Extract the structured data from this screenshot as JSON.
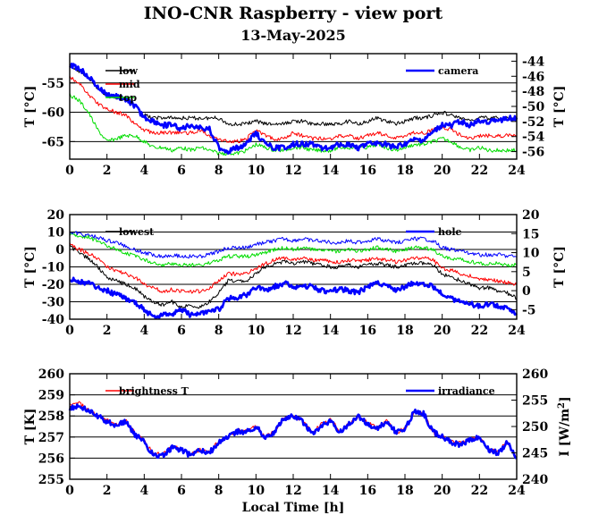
{
  "title": "INO-CNR Raspberry - view port",
  "subtitle": "13-May-2025",
  "xlabel": "Local Time [h]",
  "colors": {
    "low": "#000000",
    "mid": "#ff0000",
    "top": "#00dd00",
    "blue": "#0000ff"
  },
  "chart_data": [
    {
      "type": "line",
      "ylabel": "T [°C]",
      "y2label": "T [°C]",
      "xlim": [
        0,
        24
      ],
      "ylim": [
        -68,
        -50
      ],
      "y2lim": [
        -57,
        -43
      ],
      "xticks": [
        "0",
        "2",
        "4",
        "6",
        "8",
        "10",
        "12",
        "14",
        "16",
        "18",
        "20",
        "22",
        "24"
      ],
      "yticks": [
        "-55",
        "-60",
        "-65"
      ],
      "y2ticks": [
        "-44",
        "-46",
        "-48",
        "-50",
        "-52",
        "-54",
        "-56"
      ],
      "x": [
        0,
        0.5,
        1,
        1.5,
        2,
        2.5,
        3,
        3.5,
        4,
        4.5,
        5,
        5.5,
        6,
        6.5,
        7,
        7.5,
        8,
        8.5,
        9,
        9.5,
        10,
        10.5,
        11,
        11.5,
        12,
        12.5,
        13,
        13.5,
        14,
        14.5,
        15,
        15.5,
        16,
        16.5,
        17,
        17.5,
        18,
        18.5,
        19,
        19.5,
        20,
        20.5,
        21,
        21.5,
        22,
        22.5,
        23,
        23.5,
        24
      ],
      "series": [
        {
          "name": "low",
          "axis": "left",
          "color": "#000000",
          "values": [
            -52,
            -53,
            -54,
            -56,
            -57,
            -57.5,
            -58,
            -59,
            -60.5,
            -61,
            -61,
            -61,
            -61,
            -61,
            -61,
            -61,
            -61,
            -62,
            -62,
            -62,
            -61.5,
            -62,
            -62,
            -62,
            -61.5,
            -61.5,
            -62,
            -62,
            -62,
            -62,
            -61.5,
            -62,
            -61.5,
            -61,
            -61.5,
            -62,
            -61.5,
            -61,
            -61,
            -60.5,
            -60,
            -60.5,
            -61,
            -61.5,
            -61,
            -61,
            -61,
            -61,
            -61
          ]
        },
        {
          "name": "mid",
          "axis": "left",
          "color": "#ff0000",
          "values": [
            -54,
            -55,
            -57,
            -58.5,
            -59.5,
            -60,
            -60.5,
            -62,
            -63,
            -63.5,
            -63.5,
            -63.5,
            -63.5,
            -63.5,
            -63,
            -64,
            -64.5,
            -65,
            -65,
            -64.5,
            -63,
            -64,
            -64.5,
            -64.5,
            -63.5,
            -64,
            -64.5,
            -64.5,
            -64.5,
            -64,
            -64,
            -64.5,
            -64,
            -63.5,
            -64,
            -64.5,
            -64,
            -63.5,
            -63.5,
            -63,
            -62.5,
            -63,
            -64,
            -64.5,
            -64,
            -64,
            -64,
            -64,
            -64
          ]
        },
        {
          "name": "top",
          "axis": "left",
          "color": "#00dd00",
          "values": [
            -57,
            -58,
            -60,
            -63,
            -65,
            -64.5,
            -64,
            -64,
            -65,
            -66,
            -66,
            -66.5,
            -66,
            -66.5,
            -66,
            -66.5,
            -67,
            -67,
            -67,
            -66.5,
            -65.5,
            -66,
            -66.5,
            -66.5,
            -66,
            -66,
            -66.5,
            -66.5,
            -66.5,
            -66,
            -66,
            -66,
            -66,
            -65.5,
            -66,
            -66.5,
            -66,
            -65.5,
            -65.5,
            -65,
            -64.5,
            -65,
            -66,
            -66.5,
            -66,
            -66.5,
            -66.5,
            -66.5,
            -66.5
          ]
        },
        {
          "name": "camera",
          "axis": "right",
          "color": "#0000ff",
          "values": [
            -44.5,
            -45,
            -46,
            -47.5,
            -48.5,
            -48.7,
            -49,
            -50,
            -51.5,
            -52,
            -52.5,
            -52.5,
            -53,
            -52.5,
            -52.8,
            -53,
            -55.5,
            -56,
            -55.5,
            -55,
            -53.5,
            -55,
            -55.5,
            -55.5,
            -55,
            -55,
            -55,
            -55.5,
            -55.5,
            -55,
            -55,
            -55.5,
            -55,
            -55,
            -55,
            -55.5,
            -55,
            -54.5,
            -54.5,
            -53.5,
            -52.5,
            -52.5,
            -52,
            -52.5,
            -52,
            -52,
            -52,
            -51.5,
            -51.5
          ]
        }
      ],
      "legend_left": [
        "low",
        "mid",
        "top"
      ],
      "legend_right": [
        "camera"
      ]
    },
    {
      "type": "line",
      "ylabel": "T [°C]",
      "y2label": "T [°C]",
      "xlim": [
        0,
        24
      ],
      "ylim": [
        -40,
        20
      ],
      "y2lim": [
        -7.5,
        20
      ],
      "xticks": [
        "0",
        "2",
        "4",
        "6",
        "8",
        "10",
        "12",
        "14",
        "16",
        "18",
        "20",
        "22",
        "24"
      ],
      "yticks": [
        "20",
        "10",
        "0",
        "-10",
        "-20",
        "-30",
        "-40"
      ],
      "y2ticks": [
        "20",
        "15",
        "10",
        "5",
        "0",
        "-5"
      ],
      "x": [
        0,
        0.5,
        1,
        1.5,
        2,
        2.5,
        3,
        3.5,
        4,
        4.5,
        5,
        5.5,
        6,
        6.5,
        7,
        7.5,
        8,
        8.5,
        9,
        9.5,
        10,
        10.5,
        11,
        11.5,
        12,
        12.5,
        13,
        13.5,
        14,
        14.5,
        15,
        15.5,
        16,
        16.5,
        17,
        17.5,
        18,
        18.5,
        19,
        19.5,
        20,
        20.5,
        21,
        21.5,
        22,
        22.5,
        23,
        23.5,
        24
      ],
      "series": [
        {
          "name": "lowest",
          "axis": "left",
          "color": "#000000",
          "values": [
            2,
            -2,
            -5,
            -10,
            -16,
            -18,
            -20,
            -22,
            -27,
            -30,
            -32,
            -30,
            -33,
            -32,
            -33,
            -30,
            -25,
            -18,
            -18,
            -18,
            -14,
            -10,
            -8,
            -7,
            -8,
            -7,
            -8,
            -9,
            -10,
            -10,
            -9,
            -10,
            -9,
            -8,
            -9,
            -10,
            -9,
            -8,
            -8,
            -9,
            -14,
            -16,
            -18,
            -20,
            -22,
            -22,
            -24,
            -25,
            -28
          ]
        },
        {
          "name": "",
          "axis": "left",
          "color": "#ff0000",
          "values": [
            3,
            0,
            -2,
            -5,
            -10,
            -12,
            -14,
            -16,
            -20,
            -22,
            -24,
            -23,
            -24,
            -24,
            -24,
            -22,
            -18,
            -14,
            -14,
            -14,
            -11,
            -8,
            -6,
            -5,
            -6,
            -5,
            -6,
            -6,
            -7,
            -7,
            -6,
            -7,
            -6,
            -5,
            -6,
            -7,
            -6,
            -5,
            -5,
            -6,
            -11,
            -12,
            -14,
            -15,
            -17,
            -17,
            -18,
            -19,
            -20
          ]
        },
        {
          "name": "",
          "axis": "left",
          "color": "#00dd00",
          "values": [
            9,
            8,
            7,
            5,
            2,
            0,
            -2,
            -4,
            -6,
            -8,
            -9,
            -8,
            -9,
            -9,
            -9,
            -8,
            -6,
            -4,
            -4,
            -4,
            -3,
            -2,
            0,
            1,
            0,
            1,
            0,
            0,
            -1,
            -1,
            0,
            -1,
            0,
            1,
            0,
            -1,
            0,
            1,
            1,
            0,
            -4,
            -5,
            -6,
            -7,
            -8,
            -8,
            -8,
            -9,
            -9
          ]
        },
        {
          "name": "",
          "axis": "left",
          "color": "#0000ff",
          "values": [
            10,
            9,
            8,
            7,
            5,
            4,
            2,
            0,
            -2,
            -3,
            -4,
            -3,
            -4,
            -4,
            -4,
            -3,
            -1,
            1,
            1,
            1,
            3,
            4,
            5,
            6,
            5,
            6,
            5,
            5,
            4,
            4,
            5,
            4,
            5,
            6,
            5,
            4,
            5,
            6,
            6,
            5,
            1,
            0,
            -1,
            -2,
            -3,
            -3,
            -3,
            -4,
            -4
          ]
        },
        {
          "name": "hole",
          "axis": "right",
          "color": "#0000ff",
          "values": [
            3,
            2.5,
            2,
            1,
            0,
            -1,
            -2,
            -3,
            -5,
            -7,
            -6.5,
            -6,
            -5,
            -6.5,
            -6,
            -5.5,
            -5,
            -2,
            -2,
            -1,
            1,
            0,
            1,
            2,
            1,
            1.5,
            1,
            0,
            0,
            0.5,
            0,
            -0.5,
            1,
            2,
            1,
            0,
            1,
            2,
            2,
            1,
            -1,
            -2,
            -3,
            -3.5,
            -4,
            -3.5,
            -4,
            -4.5,
            -6
          ]
        }
      ],
      "legend_left": [
        "lowest"
      ],
      "legend_right": [
        "hole"
      ]
    },
    {
      "type": "line",
      "ylabel": "T [K]",
      "y2label": "I [W/m^2]",
      "xlim": [
        0,
        24
      ],
      "ylim": [
        255,
        260
      ],
      "y2lim": [
        240,
        260
      ],
      "xticks": [
        "0",
        "2",
        "4",
        "6",
        "8",
        "10",
        "12",
        "14",
        "16",
        "18",
        "20",
        "22",
        "24"
      ],
      "yticks": [
        "260",
        "259",
        "258",
        "257",
        "256",
        "255"
      ],
      "y2ticks": [
        "260",
        "255",
        "250",
        "245",
        "240"
      ],
      "x": [
        0,
        0.5,
        1,
        1.5,
        2,
        2.5,
        3,
        3.5,
        4,
        4.5,
        5,
        5.5,
        6,
        6.5,
        7,
        7.5,
        8,
        8.5,
        9,
        9.5,
        10,
        10.5,
        11,
        11.5,
        12,
        12.5,
        13,
        13.5,
        14,
        14.5,
        15,
        15.5,
        16,
        16.5,
        17,
        17.5,
        18,
        18.5,
        19,
        19.5,
        20,
        20.5,
        21,
        21.5,
        22,
        22.5,
        23,
        23.5,
        24
      ],
      "series": [
        {
          "name": "brightness T",
          "axis": "left",
          "color": "#ff0000",
          "values": [
            258.5,
            258.6,
            258.3,
            258,
            257.8,
            257.6,
            257.8,
            257.2,
            256.8,
            256.2,
            256.2,
            256.6,
            256.4,
            256.2,
            256.4,
            256.3,
            256.8,
            257,
            257.3,
            257.3,
            257.5,
            257,
            257.3,
            257.9,
            258,
            257.8,
            257.2,
            257.6,
            257.8,
            257.3,
            257.6,
            258,
            257.7,
            257.4,
            257.8,
            257.2,
            257.4,
            258.2,
            258.1,
            257.2,
            257,
            256.8,
            256.7,
            256.9,
            257,
            256.4,
            256.3,
            256.8,
            256
          ]
        },
        {
          "name": "irradiance",
          "axis": "right",
          "color": "#0000ff",
          "values": [
            253.5,
            254,
            253,
            252,
            251,
            250.3,
            251,
            248.5,
            247,
            244.5,
            244.5,
            246,
            245.5,
            244.5,
            245.5,
            245,
            247,
            248,
            249,
            249,
            250,
            248,
            249,
            251.5,
            252,
            251,
            248.5,
            250,
            251,
            249,
            250.5,
            252,
            250.5,
            249.5,
            251,
            249,
            249.5,
            253,
            252.5,
            249,
            248,
            247,
            246.5,
            247.5,
            248,
            245.5,
            245,
            247,
            244
          ]
        }
      ],
      "legend_left": [
        "brightness T"
      ],
      "legend_right": [
        "irradiance"
      ]
    }
  ]
}
